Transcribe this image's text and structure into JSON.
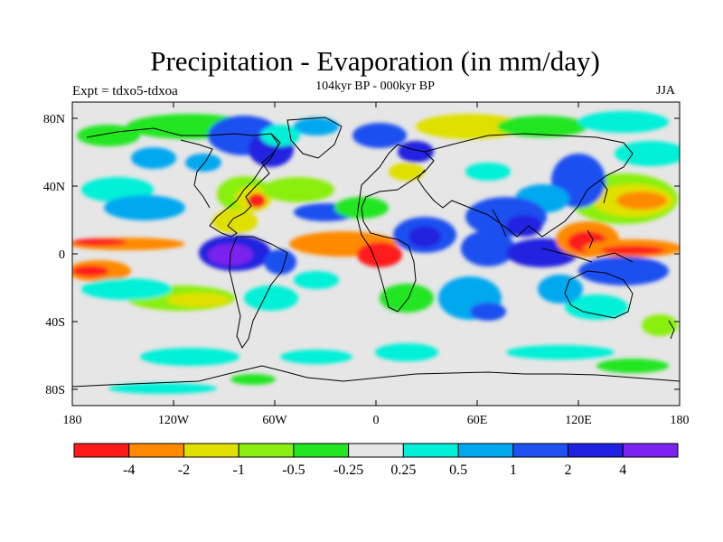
{
  "title": "Precipitation - Evaporation (in mm/day)",
  "left_string": "Expt = tdxo5-tdxoa",
  "center_string": "104kyr BP - 000kyr BP",
  "right_string": "JJA",
  "lat_labels": [
    "80N",
    "40N",
    "0",
    "40S",
    "80S"
  ],
  "lon_labels": [
    "180",
    "120W",
    "60W",
    "0",
    "60E",
    "120E",
    "180"
  ],
  "colorbar": {
    "colors": [
      "#ff1a1a",
      "#ff8a00",
      "#e0e000",
      "#8aef10",
      "#22e622",
      "#e6e6e6",
      "#00f0d8",
      "#00a8f0",
      "#1f50f0",
      "#2020e0",
      "#7a22ee"
    ],
    "labels": [
      "-4",
      "-2",
      "-1",
      "-0.5",
      "-0.25",
      "0.25",
      "0.5",
      "1",
      "2",
      "4"
    ]
  },
  "colors": {
    "background_field": "#e6e6e6",
    "coastline": "#000000",
    "frame": "#000000"
  }
}
